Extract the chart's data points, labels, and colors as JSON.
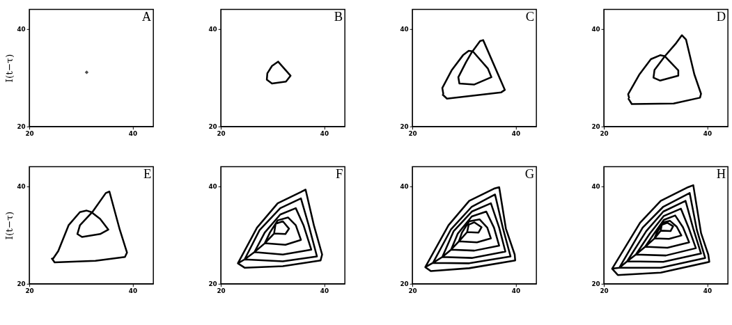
{
  "chart_data": [
    {
      "type": "scatter",
      "title": "A",
      "ylabel": "I(t−τ)",
      "marker": "diamond",
      "color": "#000000",
      "x": [
        31.1
      ],
      "values": [
        31.1
      ],
      "xlim": [
        20,
        44
      ],
      "ylim": [
        20,
        44
      ],
      "xticks": [
        20,
        40
      ],
      "yticks": [
        20,
        40
      ],
      "grid": false
    },
    {
      "type": "line",
      "title": "B",
      "color": "#000000",
      "line_style": "solid",
      "x": [
        31.0,
        33.5,
        32.6,
        29.9,
        28.9,
        29.0,
        29.9,
        31.1
      ],
      "values": [
        33.4,
        30.4,
        29.2,
        28.8,
        29.6,
        30.9,
        32.4,
        33.3
      ],
      "xlim": [
        20,
        44
      ],
      "ylim": [
        20,
        44
      ],
      "xticks": [
        20,
        40
      ],
      "yticks": [
        20,
        40
      ],
      "grid": false
    },
    {
      "type": "line",
      "title": "C",
      "color": "#000000",
      "line_style": "solid",
      "x": [
        25.8,
        26.7,
        37.2,
        37.9,
        33.7,
        33.1,
        31.5,
        30.4,
        28.9,
        29.1,
        32.0,
        35.3,
        34.6,
        31.7,
        30.9,
        29.8,
        27.6,
        25.8,
        26.0
      ],
      "values": [
        26.6,
        25.7,
        27.0,
        27.5,
        37.7,
        37.5,
        35.2,
        33.2,
        30.1,
        28.8,
        28.6,
        30.1,
        31.9,
        35.4,
        35.5,
        34.6,
        31.5,
        27.9,
        26.6
      ],
      "xlim": [
        20,
        44
      ],
      "ylim": [
        20,
        44
      ],
      "xticks": [
        20,
        40
      ],
      "yticks": [
        20,
        40
      ],
      "grid": false
    },
    {
      "type": "line",
      "title": "D",
      "color": "#000000",
      "line_style": "solid",
      "x": [
        24.7,
        25.4,
        33.5,
        38.6,
        38.8,
        37.5,
        35.9,
        35.1,
        34.0,
        31.8,
        29.8,
        29.6,
        30.9,
        34.4,
        34.4,
        31.8,
        30.9,
        29.1,
        26.9,
        24.7,
        24.9
      ],
      "values": [
        25.8,
        24.6,
        24.7,
        25.9,
        26.7,
        30.7,
        37.8,
        38.7,
        37.1,
        34.4,
        31.6,
        30.0,
        29.4,
        30.4,
        31.5,
        34.4,
        34.6,
        33.8,
        30.7,
        26.6,
        25.8
      ],
      "xlim": [
        20,
        44
      ],
      "ylim": [
        20,
        44
      ],
      "xticks": [
        20,
        40
      ],
      "yticks": [
        20,
        40
      ],
      "grid": false
    },
    {
      "type": "line",
      "title": "E",
      "ylabel": "I(t−τ)",
      "color": "#000000",
      "line_style": "solid",
      "x": [
        24.3,
        24.9,
        32.8,
        38.5,
        38.9,
        37.5,
        35.5,
        34.8,
        32.2,
        29.8,
        29.3,
        30.2,
        33.7,
        35.3,
        33.7,
        32.0,
        31.1,
        29.8,
        27.6,
        25.6,
        24.5
      ],
      "values": [
        25.3,
        24.4,
        24.7,
        25.5,
        26.4,
        31.1,
        38.9,
        38.6,
        34.7,
        32.0,
        30.2,
        29.6,
        30.2,
        31.1,
        33.3,
        34.7,
        35.0,
        34.7,
        32.0,
        26.7,
        25.0
      ],
      "xlim": [
        20,
        44
      ],
      "ylim": [
        20,
        44
      ],
      "xticks": [
        20,
        40
      ],
      "yticks": [
        20,
        40
      ],
      "grid": false
    },
    {
      "type": "line",
      "title": "F",
      "color": "#000000",
      "line_style": "solid",
      "x": [
        23.3,
        24.6,
        32,
        39.3,
        39.6,
        38,
        36.4,
        35.5,
        31,
        27,
        23.3,
        24.6,
        32,
        38.6,
        37,
        35.5,
        31.5,
        27.5,
        24.6,
        26.5,
        32,
        37.5,
        36,
        34.5,
        31.5,
        28.5,
        26.5,
        28.5,
        32.5,
        35.5,
        34.5,
        33,
        31,
        29.5,
        28.5,
        30.3,
        32.5,
        33.2,
        32,
        30.6,
        30.3
      ],
      "values": [
        24.2,
        23.3,
        23.6,
        24.8,
        26,
        32,
        39.3,
        38.8,
        36.5,
        31.5,
        24.2,
        25,
        24.6,
        25.6,
        32,
        37.5,
        35.5,
        31,
        25,
        26.5,
        26,
        27,
        32,
        35.5,
        34.2,
        30.5,
        26.5,
        28.3,
        28,
        29,
        32,
        33.6,
        33,
        30.5,
        28.3,
        30.3,
        30.2,
        31.3,
        32.8,
        32.3,
        30.3
      ],
      "xlim": [
        20,
        44
      ],
      "ylim": [
        20,
        44
      ],
      "xticks": [
        20,
        40
      ],
      "yticks": [
        20,
        40
      ],
      "grid": false
    },
    {
      "type": "line",
      "title": "G",
      "color": "#000000",
      "line_style": "solid",
      "x": [
        22.5,
        23.6,
        31,
        39.9,
        39.8,
        38.1,
        36.8,
        35.8,
        31,
        27,
        22.5,
        24,
        31,
        39,
        37.5,
        36,
        31.5,
        27.5,
        24,
        25.8,
        31.5,
        38,
        36.8,
        35.2,
        31.5,
        28,
        25.8,
        27.5,
        32,
        36.8,
        35.8,
        34.3,
        31.5,
        28.8,
        27.5,
        29,
        32.5,
        35.2,
        34.5,
        33,
        31,
        29.6,
        29,
        30.6,
        32.8,
        33.4,
        32,
        30.9,
        30.6
      ],
      "values": [
        23.4,
        22.6,
        23.2,
        24.8,
        26,
        31.3,
        39.8,
        39.5,
        37,
        32,
        23.4,
        24.3,
        24.2,
        25.6,
        31.5,
        38.3,
        35.8,
        31.2,
        24.3,
        25.5,
        25.3,
        26.6,
        31.5,
        36.5,
        34.8,
        30.8,
        25.5,
        27,
        26.8,
        27.8,
        31.5,
        34.8,
        33.8,
        30.3,
        27,
        28.7,
        28.5,
        29.3,
        31.5,
        33.2,
        32.8,
        30.5,
        28.7,
        30.6,
        30.5,
        31.6,
        32.6,
        32.1,
        30.6
      ],
      "xlim": [
        20,
        44
      ],
      "ylim": [
        20,
        44
      ],
      "xticks": [
        20,
        40
      ],
      "yticks": [
        20,
        40
      ],
      "grid": false
    },
    {
      "type": "line",
      "title": "H",
      "color": "#000000",
      "line_style": "solid",
      "x": [
        21.6,
        22.7,
        31,
        40.4,
        40.2,
        38.8,
        37.3,
        36.3,
        31,
        27,
        21.6,
        23,
        31,
        39.6,
        38,
        36.6,
        31.5,
        27.5,
        23,
        24.5,
        31.5,
        38.8,
        37.3,
        35.8,
        31.5,
        28.2,
        24.5,
        26.2,
        32,
        37.8,
        36.4,
        34.9,
        31.6,
        28.9,
        26.2,
        28,
        32.3,
        36.5,
        35.3,
        33.8,
        31.6,
        29.6,
        28,
        29.8,
        32.6,
        35,
        34.1,
        32.8,
        31.5,
        30.3,
        29.8,
        31,
        32.9,
        33.4,
        32.3,
        31.2,
        31
      ],
      "values": [
        23.1,
        21.8,
        22.3,
        24.5,
        26,
        30.4,
        40.2,
        39.8,
        37,
        32.5,
        23.1,
        23.3,
        23.3,
        25.3,
        31,
        38.6,
        35.8,
        31.5,
        23.3,
        24.6,
        24.5,
        26.2,
        31.3,
        37,
        34.8,
        30.8,
        24.6,
        26,
        25.8,
        27.3,
        31.5,
        35.4,
        33.9,
        30.3,
        26,
        27.6,
        27.4,
        28.5,
        31.6,
        34,
        33.1,
        30.1,
        27.6,
        29.3,
        29.2,
        29.9,
        31.7,
        32.9,
        32.6,
        30.6,
        29.3,
        30.9,
        30.8,
        31.8,
        32.5,
        32.1,
        30.9
      ],
      "xlim": [
        20,
        44
      ],
      "ylim": [
        20,
        44
      ],
      "xticks": [
        20,
        40
      ],
      "yticks": [
        20,
        40
      ],
      "grid": false
    }
  ]
}
